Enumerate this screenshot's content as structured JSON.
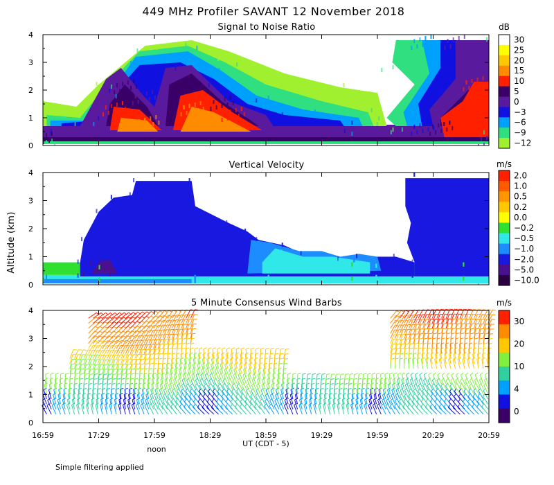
{
  "title": "449 MHz Profiler SAVANT 12 November 2018",
  "ylabel": "Altitude (km)",
  "xlabel": "UT  (CDT - 5)",
  "noon_label": "noon",
  "footnote": "Simple filtering applied",
  "time_ticks": [
    "16:59",
    "17:29",
    "17:59",
    "18:29",
    "18:59",
    "19:29",
    "19:59",
    "20:29",
    "20:59"
  ],
  "alt_ticks": [
    "0",
    "1",
    "2",
    "3",
    "4"
  ],
  "chart_data": [
    {
      "type": "heatmap",
      "title": "Signal to Noise Ratio",
      "units": "dB",
      "xlim": [
        0,
        240
      ],
      "ylim": [
        0,
        4
      ],
      "levels": [
        "30",
        "25",
        "20",
        "15",
        "10",
        "5",
        "0",
        "−3",
        "−6",
        "−9",
        "−12"
      ],
      "colors": [
        "#ffffff",
        "#ffff00",
        "#ffc800",
        "#ff8c00",
        "#ff2000",
        "#3a0068",
        "#5a1a9e",
        "#1010e0",
        "#00a0ff",
        "#30e080",
        "#a0f030"
      ],
      "regions": [
        {
          "t": [
            [
              0,
              0.05
            ],
            [
              240,
              0.05
            ],
            [
              240,
              0.28
            ],
            [
              0,
              0.28
            ]
          ],
          "c": 9
        },
        {
          "t": [
            [
              0,
              0.25
            ],
            [
              240,
              0.25
            ],
            [
              240,
              0.75
            ],
            [
              0,
              0.75
            ]
          ],
          "c": 6
        },
        {
          "t": [
            [
              0,
              0.3
            ],
            [
              42,
              0.3
            ],
            [
              78,
              0.3
            ],
            [
              240,
              0.3
            ],
            [
              240,
              0.15
            ],
            [
              0,
              0.15
            ]
          ],
          "c": 5
        },
        {
          "t": [
            [
              0,
              1.6
            ],
            [
              18,
              1.4
            ],
            [
              30,
              2.2
            ],
            [
              55,
              3.6
            ],
            [
              80,
              3.8
            ],
            [
              100,
              3.4
            ],
            [
              130,
              2.6
            ],
            [
              160,
              2.1
            ],
            [
              180,
              1.9
            ],
            [
              185,
              0.7
            ],
            [
              0,
              0.7
            ]
          ],
          "c": 10
        },
        {
          "t": [
            [
              2,
              1.1
            ],
            [
              20,
              1.0
            ],
            [
              32,
              2.0
            ],
            [
              52,
              3.4
            ],
            [
              78,
              3.6
            ],
            [
              98,
              3.0
            ],
            [
              120,
              2.2
            ],
            [
              150,
              1.6
            ],
            [
              175,
              1.2
            ],
            [
              178,
              0.7
            ],
            [
              2,
              0.7
            ]
          ],
          "c": 9
        },
        {
          "t": [
            [
              4,
              0.9
            ],
            [
              24,
              0.9
            ],
            [
              36,
              1.9
            ],
            [
              50,
              3.2
            ],
            [
              78,
              3.4
            ],
            [
              96,
              2.7
            ],
            [
              115,
              1.8
            ],
            [
              140,
              1.3
            ],
            [
              170,
              1.0
            ],
            [
              172,
              0.7
            ],
            [
              4,
              0.7
            ]
          ],
          "c": 8
        },
        {
          "t": [
            [
              10,
              0.8
            ],
            [
              28,
              0.9
            ],
            [
              40,
              2.0
            ],
            [
              52,
              2.9
            ],
            [
              74,
              3.0
            ],
            [
              92,
              2.4
            ],
            [
              110,
              1.5
            ],
            [
              130,
              1.1
            ],
            [
              160,
              0.9
            ],
            [
              162,
              0.7
            ],
            [
              10,
              0.7
            ]
          ],
          "c": 7
        },
        {
          "t": [
            [
              20,
              0.7
            ],
            [
              34,
              2.4
            ],
            [
              42,
              2.8
            ],
            [
              54,
              1.8
            ],
            [
              60,
              1.4
            ],
            [
              66,
              2.8
            ],
            [
              80,
              2.9
            ],
            [
              100,
              1.6
            ],
            [
              120,
              1.1
            ],
            [
              124,
              0.7
            ]
          ],
          "c": 6
        },
        {
          "t": [
            [
              34,
              0.7
            ],
            [
              36,
              1.5
            ],
            [
              44,
              2.2
            ],
            [
              56,
              1.4
            ],
            [
              62,
              0.7
            ]
          ],
          "c": 5
        },
        {
          "t": [
            [
              36,
              0.55
            ],
            [
              38,
              1.4
            ],
            [
              52,
              1.3
            ],
            [
              64,
              0.55
            ]
          ],
          "c": 4
        },
        {
          "t": [
            [
              40,
              0.5
            ],
            [
              42,
              1.0
            ],
            [
              56,
              0.9
            ],
            [
              62,
              0.5
            ]
          ],
          "c": 3
        },
        {
          "t": [
            [
              66,
              0.7
            ],
            [
              68,
              2.2
            ],
            [
              80,
              2.6
            ],
            [
              96,
              1.6
            ],
            [
              112,
              0.9
            ],
            [
              116,
              0.7
            ]
          ],
          "c": 5
        },
        {
          "t": [
            [
              70,
              0.55
            ],
            [
              74,
              1.8
            ],
            [
              86,
              2.0
            ],
            [
              102,
              1.2
            ],
            [
              118,
              0.55
            ]
          ],
          "c": 4
        },
        {
          "t": [
            [
              74,
              0.5
            ],
            [
              80,
              1.4
            ],
            [
              92,
              1.2
            ],
            [
              112,
              0.5
            ]
          ],
          "c": 3
        },
        {
          "t": [
            [
              190,
              0.7
            ],
            [
              185,
              1.0
            ],
            [
              200,
              2.2
            ],
            [
              188,
              3.0
            ],
            [
              190,
              3.8
            ],
            [
              240,
              3.8
            ],
            [
              240,
              0.7
            ]
          ],
          "c": 9
        },
        {
          "t": [
            [
              196,
              0.7
            ],
            [
              194,
              1.2
            ],
            [
              208,
              2.6
            ],
            [
              204,
              3.8
            ],
            [
              240,
              3.8
            ],
            [
              240,
              0.7
            ]
          ],
          "c": 8
        },
        {
          "t": [
            [
              204,
              0.7
            ],
            [
              202,
              1.5
            ],
            [
              214,
              2.8
            ],
            [
              214,
              3.8
            ],
            [
              240,
              3.8
            ],
            [
              240,
              0.7
            ]
          ],
          "c": 7
        },
        {
          "t": [
            [
              210,
              0.7
            ],
            [
              208,
              1.3
            ],
            [
              222,
              2.4
            ],
            [
              222,
              3.8
            ],
            [
              240,
              3.8
            ],
            [
              240,
              0.7
            ]
          ],
          "c": 6
        },
        {
          "t": [
            [
              214,
              0.7
            ],
            [
              214,
              1.0
            ],
            [
              226,
              1.8
            ],
            [
              232,
              2.2
            ],
            [
              240,
              2.1
            ],
            [
              240,
              0.7
            ]
          ],
          "c": 5
        },
        {
          "t": [
            [
              216,
              0.3
            ],
            [
              214,
              1.0
            ],
            [
              226,
              1.6
            ],
            [
              232,
              2.3
            ],
            [
              240,
              2.3
            ],
            [
              240,
              0.3
            ]
          ],
          "c": 4
        }
      ]
    },
    {
      "type": "heatmap",
      "title": "Vertical Velocity",
      "units": "m/s",
      "xlim": [
        0,
        240
      ],
      "ylim": [
        0,
        4
      ],
      "levels": [
        "2.0",
        "1.0",
        "0.5",
        "0.2",
        "0.0",
        "−0.2",
        "−0.5",
        "−1.0",
        "−2.0",
        "−5.0",
        "−10.0"
      ],
      "colors": [
        "#ff2000",
        "#ff5a00",
        "#ff9600",
        "#ffc800",
        "#ffff00",
        "#30e030",
        "#30e8e8",
        "#1c8cff",
        "#1818e0",
        "#4a1090",
        "#2a0040"
      ],
      "regions": [
        {
          "t": [
            [
              0,
              0.05
            ],
            [
              240,
              0.05
            ],
            [
              240,
              0.35
            ],
            [
              0,
              0.35
            ]
          ],
          "c": 6
        },
        {
          "t": [
            [
              0,
              0.35
            ],
            [
              30,
              0.35
            ],
            [
              30,
              0.8
            ],
            [
              0,
              0.8
            ]
          ],
          "c": 5
        },
        {
          "t": [
            [
              160,
              0.3
            ],
            [
              220,
              0.3
            ],
            [
              220,
              0.8
            ],
            [
              160,
              0.8
            ]
          ],
          "c": 5
        },
        {
          "t": [
            [
              20,
              0.8
            ],
            [
              22,
              1.6
            ],
            [
              30,
              2.6
            ],
            [
              38,
              3.1
            ],
            [
              48,
              3.2
            ],
            [
              50,
              3.7
            ],
            [
              80,
              3.7
            ],
            [
              82,
              2.8
            ],
            [
              100,
              2.2
            ],
            [
              110,
              1.9
            ],
            [
              116,
              1.6
            ],
            [
              130,
              1.4
            ],
            [
              140,
              1.1
            ],
            [
              160,
              0.9
            ],
            [
              170,
              1.0
            ],
            [
              190,
              1.0
            ],
            [
              200,
              0.8
            ],
            [
              200,
              0.3
            ],
            [
              20,
              0.3
            ]
          ],
          "c": 8
        },
        {
          "t": [
            [
              200,
              0.8
            ],
            [
              196,
              1.5
            ],
            [
              198,
              2.2
            ],
            [
              195,
              2.8
            ],
            [
              195,
              3.8
            ],
            [
              240,
              3.8
            ],
            [
              240,
              0.3
            ],
            [
              200,
              0.3
            ]
          ],
          "c": 8
        },
        {
          "t": [
            [
              110,
              0.4
            ],
            [
              112,
              1.6
            ],
            [
              122,
              1.5
            ],
            [
              138,
              1.2
            ],
            [
              150,
              1.2
            ],
            [
              160,
              1.0
            ],
            [
              170,
              1.1
            ],
            [
              180,
              1.0
            ],
            [
              182,
              0.5
            ]
          ],
          "c": 7
        },
        {
          "t": [
            [
              118,
              0.8
            ],
            [
              125,
              1.3
            ],
            [
              140,
              1.0
            ],
            [
              156,
              1.0
            ],
            [
              176,
              0.8
            ],
            [
              176,
              0.4
            ],
            [
              118,
              0.4
            ]
          ],
          "c": 6
        },
        {
          "t": [
            [
              26,
              0.4
            ],
            [
              30,
              0.8
            ],
            [
              36,
              0.9
            ],
            [
              40,
              0.4
            ]
          ],
          "c": 9
        },
        {
          "t": [
            [
              0,
              0.05
            ],
            [
              80,
              0.05
            ],
            [
              80,
              0.2
            ],
            [
              0,
              0.2
            ]
          ],
          "c": 7
        }
      ]
    },
    {
      "type": "scatter",
      "title": "5 Minute Consensus Wind Barbs",
      "units": "m/s",
      "xlim": [
        0,
        240
      ],
      "ylim": [
        0,
        4
      ],
      "levels": [
        "30",
        "20",
        "10",
        "4",
        "0"
      ],
      "colors": [
        "#ff2000",
        "#ff8c00",
        "#ffc800",
        "#80f040",
        "#30d0a0",
        "#00a0ff",
        "#1010e0",
        "#3a0068"
      ],
      "speed_ticks": [
        30,
        20,
        10,
        4,
        0
      ]
    }
  ]
}
